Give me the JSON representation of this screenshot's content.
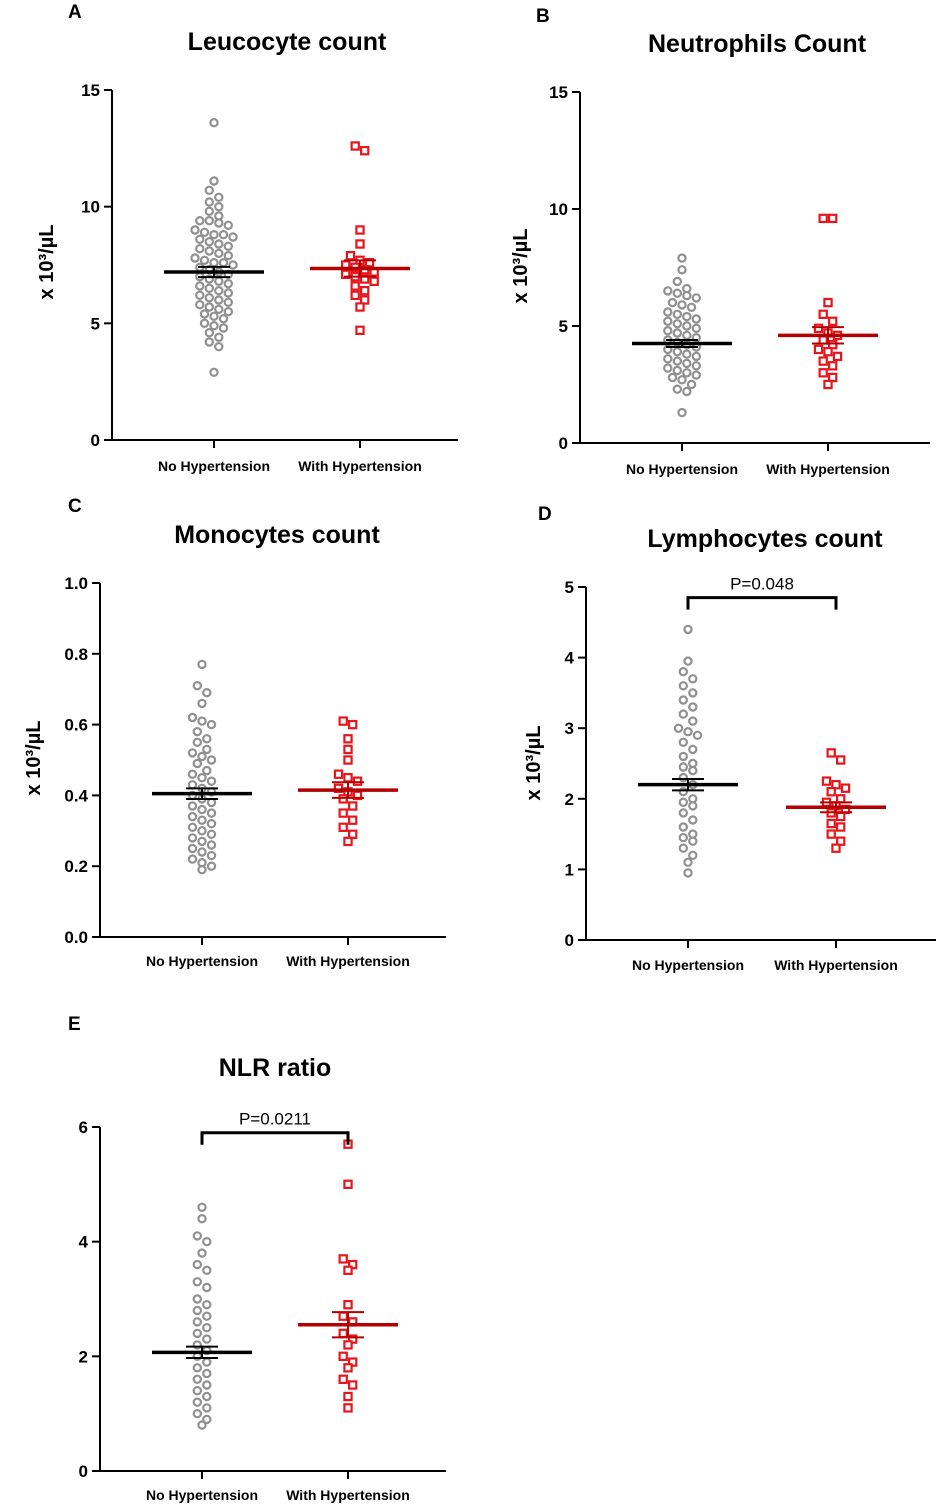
{
  "colors": {
    "no_hypertension": "#909090",
    "with_hypertension": "#e8161c",
    "no_hypertension_mean": "#000000",
    "with_hypertension_mean": "#b30000",
    "axis": "#000000"
  },
  "chart_data": [
    {
      "type": "scatter",
      "panel": "A",
      "title": "Leucocyte count",
      "ylabel": "x 10³/µL",
      "ylim": [
        0,
        15
      ],
      "yticks": [
        0,
        5,
        10,
        15
      ],
      "ytick_labels": [
        "0",
        "5",
        "10",
        "15"
      ],
      "categories": [
        "No Hypertension",
        "With Hypertension"
      ],
      "series": [
        {
          "name": "No Hypertension",
          "mean": 7.2,
          "sem": 0.22,
          "values": [
            13.6,
            11.1,
            10.7,
            10.4,
            10.2,
            10.0,
            9.8,
            9.6,
            9.4,
            9.4,
            9.3,
            9.2,
            9.0,
            8.9,
            8.8,
            8.8,
            8.7,
            8.6,
            8.5,
            8.4,
            8.3,
            8.2,
            8.1,
            8.0,
            7.9,
            7.8,
            7.7,
            7.6,
            7.6,
            7.5,
            7.4,
            7.3,
            7.2,
            7.1,
            7.0,
            6.9,
            6.8,
            6.7,
            6.6,
            6.5,
            6.4,
            6.3,
            6.2,
            6.1,
            6.0,
            5.9,
            5.8,
            5.7,
            5.6,
            5.5,
            5.4,
            5.3,
            5.2,
            5.0,
            4.9,
            4.8,
            4.6,
            4.4,
            4.2,
            4.0,
            2.9
          ]
        },
        {
          "name": "With Hypertension",
          "mean": 7.35,
          "sem": 0.35,
          "values": [
            12.6,
            12.4,
            9.0,
            8.4,
            7.9,
            7.7,
            7.6,
            7.5,
            7.4,
            7.3,
            7.2,
            7.1,
            7.0,
            6.9,
            6.8,
            6.6,
            6.4,
            6.2,
            6.0,
            5.7,
            4.7
          ]
        }
      ]
    },
    {
      "type": "scatter",
      "panel": "B",
      "title": "Neutrophils Count",
      "ylabel": "x 10³/µL",
      "ylim": [
        0,
        15
      ],
      "yticks": [
        0,
        5,
        10,
        15
      ],
      "ytick_labels": [
        "0",
        "5",
        "10",
        "15"
      ],
      "categories": [
        "No Hypertension",
        "With Hypertension"
      ],
      "series": [
        {
          "name": "No Hypertension",
          "mean": 4.25,
          "sem": 0.15,
          "values": [
            7.9,
            7.4,
            6.9,
            6.6,
            6.5,
            6.4,
            6.3,
            6.2,
            6.0,
            5.9,
            5.8,
            5.6,
            5.5,
            5.4,
            5.3,
            5.2,
            5.1,
            5.0,
            4.9,
            4.8,
            4.7,
            4.6,
            4.5,
            4.4,
            4.3,
            4.2,
            4.1,
            4.0,
            3.9,
            3.8,
            3.7,
            3.6,
            3.5,
            3.4,
            3.3,
            3.2,
            3.1,
            3.0,
            2.9,
            2.8,
            2.7,
            2.5,
            2.3,
            2.2,
            1.3
          ]
        },
        {
          "name": "With Hypertension",
          "mean": 4.6,
          "sem": 0.35,
          "values": [
            9.6,
            9.6,
            6.0,
            5.5,
            5.2,
            4.9,
            4.7,
            4.6,
            4.4,
            4.2,
            4.0,
            3.9,
            3.7,
            3.5,
            3.3,
            3.0,
            2.8,
            2.5
          ]
        }
      ]
    },
    {
      "type": "scatter",
      "panel": "C",
      "title": "Monocytes count",
      "ylabel": "x 10³/µL",
      "ylim": [
        0,
        1.0
      ],
      "yticks": [
        0,
        0.2,
        0.4,
        0.6,
        0.8,
        1.0
      ],
      "ytick_labels": [
        "0.0",
        "0.2",
        "0.4",
        "0.6",
        "0.8",
        "1.0"
      ],
      "categories": [
        "No Hypertension",
        "With Hypertension"
      ],
      "series": [
        {
          "name": "No Hypertension",
          "mean": 0.405,
          "sem": 0.015,
          "values": [
            0.77,
            0.71,
            0.69,
            0.66,
            0.62,
            0.61,
            0.6,
            0.58,
            0.56,
            0.55,
            0.53,
            0.52,
            0.51,
            0.5,
            0.49,
            0.47,
            0.46,
            0.45,
            0.44,
            0.43,
            0.42,
            0.41,
            0.4,
            0.39,
            0.38,
            0.37,
            0.36,
            0.35,
            0.34,
            0.33,
            0.32,
            0.31,
            0.3,
            0.29,
            0.28,
            0.27,
            0.26,
            0.25,
            0.24,
            0.23,
            0.22,
            0.21,
            0.2,
            0.19
          ]
        },
        {
          "name": "With Hypertension",
          "mean": 0.415,
          "sem": 0.022,
          "values": [
            0.61,
            0.6,
            0.56,
            0.53,
            0.5,
            0.46,
            0.45,
            0.44,
            0.42,
            0.41,
            0.4,
            0.39,
            0.37,
            0.35,
            0.33,
            0.31,
            0.29,
            0.27
          ]
        }
      ]
    },
    {
      "type": "scatter",
      "panel": "D",
      "title": "Lymphocytes count",
      "ylabel": "x 10³/µL",
      "ylim": [
        0,
        5
      ],
      "yticks": [
        0,
        1,
        2,
        3,
        4,
        5
      ],
      "ytick_labels": [
        "0",
        "1",
        "2",
        "3",
        "4",
        "5"
      ],
      "categories": [
        "No Hypertension",
        "With Hypertension"
      ],
      "significance": {
        "label": "P=0.048",
        "y": 4.85
      },
      "series": [
        {
          "name": "No Hypertension",
          "mean": 2.2,
          "sem": 0.08,
          "values": [
            4.4,
            3.95,
            3.8,
            3.7,
            3.6,
            3.5,
            3.4,
            3.3,
            3.2,
            3.1,
            3.0,
            2.95,
            2.9,
            2.8,
            2.7,
            2.6,
            2.5,
            2.45,
            2.4,
            2.3,
            2.2,
            2.1,
            2.0,
            1.95,
            1.9,
            1.8,
            1.7,
            1.6,
            1.5,
            1.45,
            1.4,
            1.3,
            1.2,
            1.1,
            0.95
          ]
        },
        {
          "name": "With Hypertension",
          "mean": 1.88,
          "sem": 0.07,
          "values": [
            2.65,
            2.55,
            2.25,
            2.2,
            2.15,
            2.1,
            2.0,
            1.95,
            1.9,
            1.85,
            1.8,
            1.75,
            1.65,
            1.6,
            1.5,
            1.4,
            1.3
          ]
        }
      ]
    },
    {
      "type": "scatter",
      "panel": "E",
      "title": "NLR ratio",
      "ylabel": "",
      "ylim": [
        0,
        6
      ],
      "yticks": [
        0,
        2,
        4,
        6
      ],
      "ytick_labels": [
        "0",
        "2",
        "4",
        "6"
      ],
      "categories": [
        "No Hypertension",
        "With Hypertension"
      ],
      "significance": {
        "label": "P=0.0211",
        "y": 5.9
      },
      "series": [
        {
          "name": "No Hypertension",
          "mean": 2.07,
          "sem": 0.1,
          "values": [
            4.6,
            4.4,
            4.1,
            4.0,
            3.8,
            3.6,
            3.5,
            3.3,
            3.2,
            3.0,
            2.9,
            2.8,
            2.7,
            2.6,
            2.5,
            2.4,
            2.3,
            2.2,
            2.1,
            2.0,
            1.9,
            1.8,
            1.7,
            1.6,
            1.5,
            1.4,
            1.3,
            1.2,
            1.1,
            1.0,
            0.9,
            0.8
          ]
        },
        {
          "name": "With Hypertension",
          "mean": 2.55,
          "sem": 0.22,
          "values": [
            5.7,
            5.0,
            3.7,
            3.6,
            3.5,
            2.9,
            2.7,
            2.6,
            2.4,
            2.3,
            2.2,
            2.0,
            1.9,
            1.8,
            1.6,
            1.5,
            1.3,
            1.1
          ]
        }
      ]
    }
  ]
}
